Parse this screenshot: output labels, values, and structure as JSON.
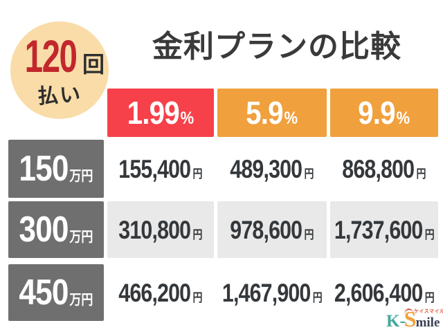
{
  "badge": {
    "count": "120",
    "count_unit": "回",
    "label": "払い",
    "bg_color": "#F9DCA7",
    "count_color": "#C1272D"
  },
  "title": "金利プランの比較",
  "table": {
    "columns": [
      {
        "rate": "1.99",
        "unit": "%",
        "color": "#F6414A"
      },
      {
        "rate": "5.9",
        "unit": "%",
        "color": "#F0A03C"
      },
      {
        "rate": "9.9",
        "unit": "%",
        "color": "#F0A03C"
      }
    ],
    "rows": [
      {
        "amount": "150",
        "amount_unit": "万円",
        "values": [
          "155,400",
          "489,300",
          "868,800"
        ]
      },
      {
        "amount": "300",
        "amount_unit": "万円",
        "values": [
          "310,800",
          "978,600",
          "1,737,600"
        ]
      },
      {
        "amount": "450",
        "amount_unit": "万円",
        "values": [
          "466,200",
          "1,467,900",
          "2,606,400"
        ]
      }
    ],
    "value_unit": "円",
    "row_header_color": "#6F6F6F",
    "shaded_cell_color": "#E9E9E9"
  },
  "logo": {
    "k": "K-",
    "s": "S",
    "mile": "mile",
    "kana": "ケイスマイル"
  },
  "chart_data": {
    "type": "table",
    "title": "金利プランの比較",
    "badge": "120回払い",
    "columns": [
      "1.99%",
      "5.9%",
      "9.9%"
    ],
    "row_labels": [
      "150万円",
      "300万円",
      "450万円"
    ],
    "values": [
      [
        "155,400円",
        "489,300円",
        "868,800円"
      ],
      [
        "310,800円",
        "978,600円",
        "1,737,600円"
      ],
      [
        "466,200円",
        "1,467,900円",
        "2,606,400円"
      ]
    ],
    "value_unit": "円"
  }
}
